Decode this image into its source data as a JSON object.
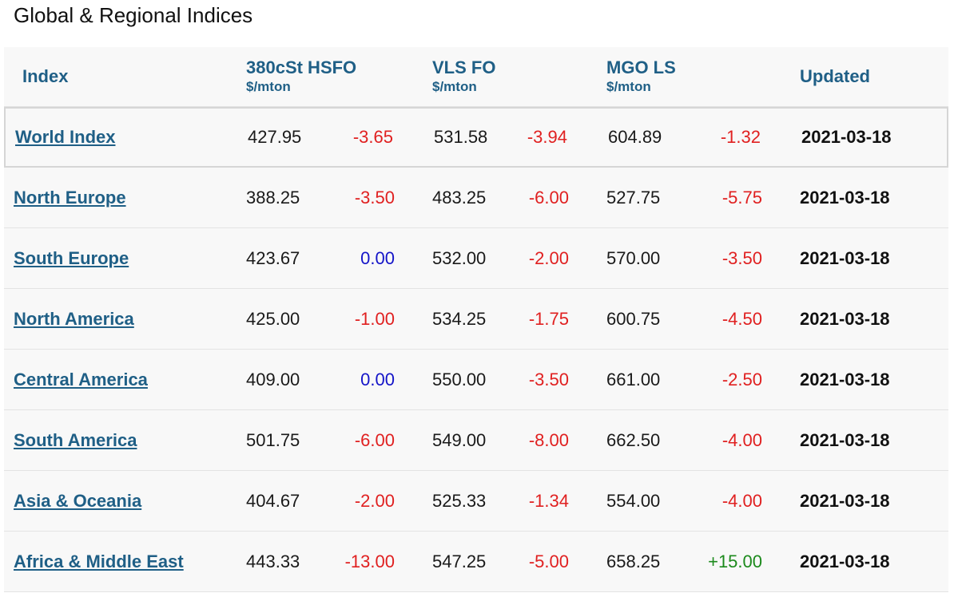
{
  "page_title": "Global & Regional Indices",
  "headers": {
    "index": "Index",
    "hsfo": "380cSt HSFO",
    "hsfo_unit": "$/mton",
    "vlsfo": "VLS FO",
    "vlsfo_unit": "$/mton",
    "mgo": "MGO LS",
    "mgo_unit": "$/mton",
    "updated": "Updated"
  },
  "rows": [
    {
      "name": "World Index",
      "hsfo": "427.95",
      "hsfo_chg": "-3.65",
      "vlsfo": "531.58",
      "vlsfo_chg": "-3.94",
      "mgo": "604.89",
      "mgo_chg": "-1.32",
      "updated": "2021-03-18"
    },
    {
      "name": "North Europe",
      "hsfo": "388.25",
      "hsfo_chg": "-3.50",
      "vlsfo": "483.25",
      "vlsfo_chg": "-6.00",
      "mgo": "527.75",
      "mgo_chg": "-5.75",
      "updated": "2021-03-18"
    },
    {
      "name": "South Europe",
      "hsfo": "423.67",
      "hsfo_chg": "0.00",
      "vlsfo": "532.00",
      "vlsfo_chg": "-2.00",
      "mgo": "570.00",
      "mgo_chg": "-3.50",
      "updated": "2021-03-18"
    },
    {
      "name": "North America",
      "hsfo": "425.00",
      "hsfo_chg": "-1.00",
      "vlsfo": "534.25",
      "vlsfo_chg": "-1.75",
      "mgo": "600.75",
      "mgo_chg": "-4.50",
      "updated": "2021-03-18"
    },
    {
      "name": "Central America",
      "hsfo": "409.00",
      "hsfo_chg": "0.00",
      "vlsfo": "550.00",
      "vlsfo_chg": "-3.50",
      "mgo": "661.00",
      "mgo_chg": "-2.50",
      "updated": "2021-03-18"
    },
    {
      "name": "South America",
      "hsfo": "501.75",
      "hsfo_chg": "-6.00",
      "vlsfo": "549.00",
      "vlsfo_chg": "-8.00",
      "mgo": "662.50",
      "mgo_chg": "-4.00",
      "updated": "2021-03-18"
    },
    {
      "name": "Asia & Oceania",
      "hsfo": "404.67",
      "hsfo_chg": "-2.00",
      "vlsfo": "525.33",
      "vlsfo_chg": "-1.34",
      "mgo": "554.00",
      "mgo_chg": "-4.00",
      "updated": "2021-03-18"
    },
    {
      "name": "Africa & Middle East",
      "hsfo": "443.33",
      "hsfo_chg": "-13.00",
      "vlsfo": "547.25",
      "vlsfo_chg": "-5.00",
      "mgo": "658.25",
      "mgo_chg": "+15.00",
      "updated": "2021-03-18"
    }
  ],
  "colors": {
    "header_text": "#1f5f86",
    "negative": "#e02020",
    "zero": "#1414c8",
    "positive": "#1c8a1c"
  }
}
